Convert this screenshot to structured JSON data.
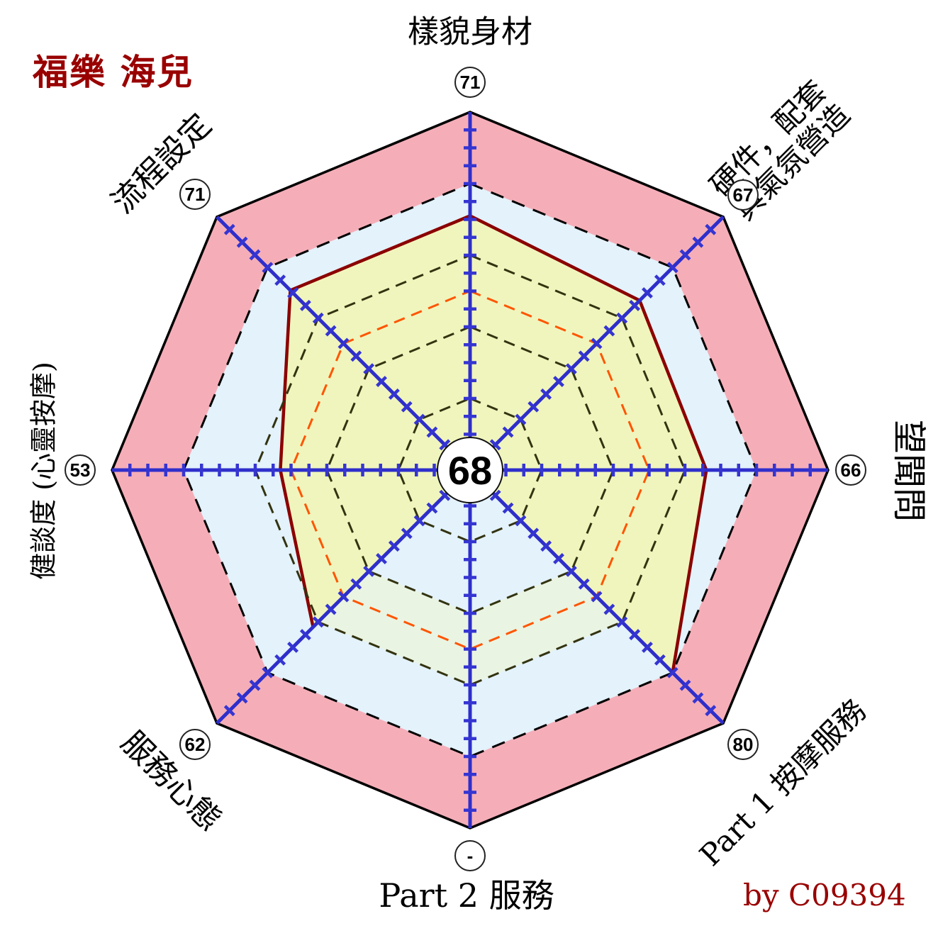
{
  "title": "福樂 海兒",
  "credit": "by C09394",
  "colors": {
    "title": "#990000",
    "credit": "#990000",
    "badge_bg": "#FFFFFF",
    "badge_border": "#222222"
  },
  "chart_data": {
    "type": "radar",
    "max": 100,
    "tick_step": 5,
    "center_label": "68",
    "axes": [
      {
        "label": "樣貌身材",
        "score": "71",
        "value": 71
      },
      {
        "label": "硬件，配套\n與氣氛營造",
        "score": "67",
        "value": 67
      },
      {
        "label": "望聞問",
        "score": "66",
        "value": 66
      },
      {
        "label": "Part 1 按摩服務",
        "score": "80",
        "value": 80
      },
      {
        "label": "Part 2 服務",
        "score": "-",
        "value": null
      },
      {
        "label": "服務心態",
        "score": "62",
        "value": 62
      },
      {
        "label": "健談度 (心靈按摩)",
        "score": "53",
        "value": 53
      },
      {
        "label": "流程設定",
        "score": "71",
        "value": 71
      }
    ],
    "rings": {
      "outer": {
        "r": 100,
        "fill": "#F5AEB8",
        "stroke": "#000000"
      },
      "inner_area": {
        "r": 80,
        "fill": "#E3F2FB",
        "stroke": "#000000"
      },
      "guides": [
        {
          "r": 60,
          "color": "#333311"
        },
        {
          "r": 50,
          "color": "#FF5500"
        },
        {
          "r": 40,
          "color": "#333311"
        },
        {
          "r": 20,
          "color": "#333311"
        }
      ],
      "band": {
        "from": 40,
        "to": 60,
        "fill": "#EAF4E2"
      }
    },
    "series": {
      "stroke": "#8B0000",
      "fill": "#F0F5BD"
    },
    "axis_color": "#2E2ECB",
    "tick_color": "#3535D2"
  }
}
